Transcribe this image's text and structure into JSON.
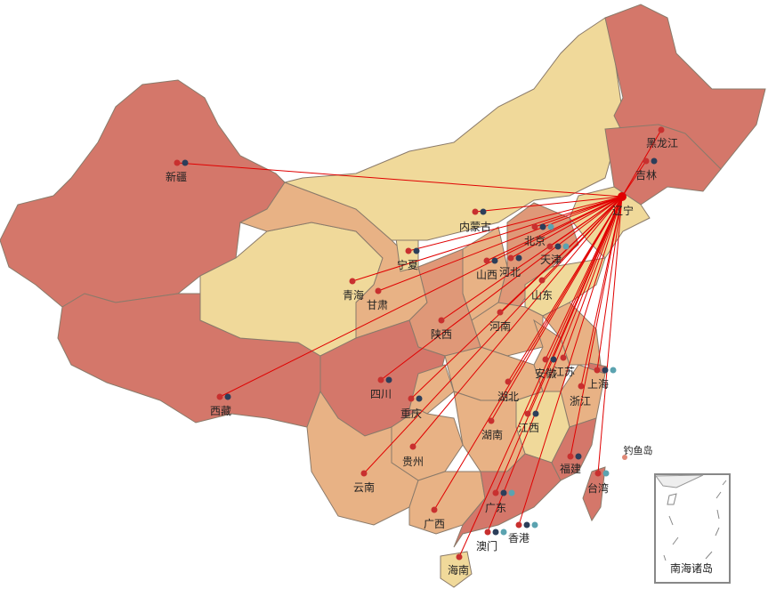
{
  "map": {
    "source": "辽宁",
    "colors": {
      "level_light": "#f0d99a",
      "level_mid": "#e8b285",
      "level_midhigh": "#df9878",
      "level_high": "#d4776a",
      "flow_line": "#e00000",
      "marker_red": "#c8302f",
      "marker_navy": "#2c3e5a",
      "marker_teal": "#5ba3b0",
      "source_point": "#e00000"
    },
    "regions": [
      {
        "name": "新疆",
        "level": "high",
        "markers": [
          "red",
          "navy"
        ]
      },
      {
        "name": "西藏",
        "level": "high",
        "markers": [
          "red",
          "navy"
        ]
      },
      {
        "name": "青海",
        "level": "light",
        "markers": [
          "red"
        ]
      },
      {
        "name": "甘肃",
        "level": "mid",
        "markers": [
          "red"
        ]
      },
      {
        "name": "宁夏",
        "level": "light",
        "markers": [
          "red",
          "navy"
        ]
      },
      {
        "name": "内蒙古",
        "level": "light",
        "markers": [
          "red",
          "navy"
        ]
      },
      {
        "name": "黑龙江",
        "level": "high",
        "markers": [
          "red"
        ]
      },
      {
        "name": "吉林",
        "level": "high",
        "markers": [
          "red",
          "navy"
        ]
      },
      {
        "name": "辽宁",
        "level": "light",
        "markers": []
      },
      {
        "name": "北京",
        "level": "high",
        "markers": [
          "red",
          "navy",
          "teal"
        ]
      },
      {
        "name": "天津",
        "level": "midhigh",
        "markers": [
          "red",
          "navy",
          "teal"
        ]
      },
      {
        "name": "河北",
        "level": "midhigh",
        "markers": [
          "red",
          "navy"
        ]
      },
      {
        "name": "山西",
        "level": "mid",
        "markers": [
          "red",
          "navy"
        ]
      },
      {
        "name": "山东",
        "level": "light",
        "markers": [
          "red"
        ]
      },
      {
        "name": "河南",
        "level": "mid",
        "markers": [
          "red"
        ]
      },
      {
        "name": "陕西",
        "level": "midhigh",
        "markers": [
          "red"
        ]
      },
      {
        "name": "四川",
        "level": "high",
        "markers": [
          "red",
          "navy"
        ]
      },
      {
        "name": "重庆",
        "level": "mid",
        "markers": [
          "red",
          "navy"
        ]
      },
      {
        "name": "湖北",
        "level": "mid",
        "markers": [
          "red"
        ]
      },
      {
        "name": "安徽",
        "level": "mid",
        "markers": [
          "red",
          "navy"
        ]
      },
      {
        "name": "江苏",
        "level": "mid",
        "markers": [
          "red"
        ]
      },
      {
        "name": "上海",
        "level": "high",
        "markers": [
          "red",
          "navy",
          "teal"
        ]
      },
      {
        "name": "浙江",
        "level": "mid",
        "markers": [
          "red"
        ]
      },
      {
        "name": "江西",
        "level": "light",
        "markers": [
          "red",
          "navy"
        ]
      },
      {
        "name": "湖南",
        "level": "mid",
        "markers": [
          "red"
        ]
      },
      {
        "name": "贵州",
        "level": "mid",
        "markers": [
          "red"
        ]
      },
      {
        "name": "云南",
        "level": "mid",
        "markers": [
          "red"
        ]
      },
      {
        "name": "广西",
        "level": "mid",
        "markers": [
          "red"
        ]
      },
      {
        "name": "广东",
        "level": "high",
        "markers": [
          "red",
          "navy",
          "teal"
        ]
      },
      {
        "name": "福建",
        "level": "high",
        "markers": [
          "red",
          "navy"
        ]
      },
      {
        "name": "台湾",
        "level": "high",
        "markers": [
          "red",
          "teal"
        ]
      },
      {
        "name": "香港",
        "level": "high",
        "markers": [
          "red",
          "navy",
          "teal"
        ]
      },
      {
        "name": "澳门",
        "level": "high",
        "markers": [
          "red",
          "navy",
          "teal"
        ]
      },
      {
        "name": "海南",
        "level": "light",
        "markers": [
          "red"
        ]
      }
    ],
    "diaoyu_label": "钓鱼岛",
    "inset_label": "南海诸岛"
  }
}
